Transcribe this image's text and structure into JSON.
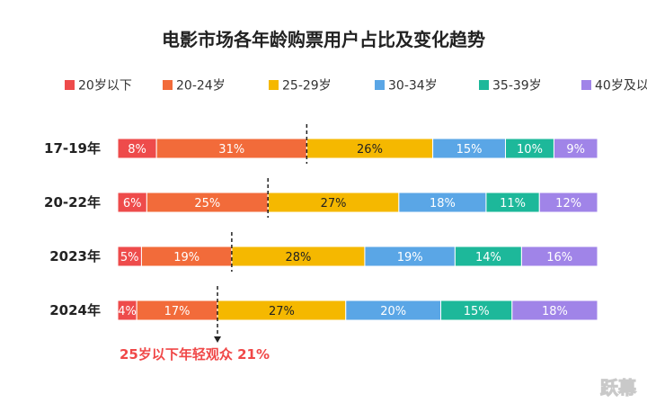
{
  "chart_data": {
    "type": "bar",
    "stacked": true,
    "orientation": "horizontal",
    "title": "电影市场各年龄购票用户占比及变化趋势",
    "categories": [
      "17-19年",
      "20-22年",
      "2023年",
      "2024年"
    ],
    "series": [
      {
        "name": "20岁以下",
        "color": "#ee4b4b",
        "values": [
          8,
          6,
          5,
          4
        ]
      },
      {
        "name": "20-24岁",
        "color": "#f26b3a",
        "values": [
          31,
          25,
          19,
          17
        ]
      },
      {
        "name": "25-29岁",
        "color": "#f5b800",
        "values": [
          26,
          27,
          28,
          27
        ]
      },
      {
        "name": "30-34岁",
        "color": "#5aa6e6",
        "values": [
          15,
          18,
          19,
          20
        ]
      },
      {
        "name": "35-39岁",
        "color": "#1db89a",
        "values": [
          10,
          11,
          14,
          15
        ]
      },
      {
        "name": "40岁及以上",
        "color": "#a084e8",
        "values": [
          9,
          12,
          16,
          18
        ]
      }
    ],
    "value_suffix": "%",
    "legend_position": "top",
    "annotation": "25岁以下年轻观众 21%",
    "annotation_color": "#f04848",
    "divider_after_series": 1
  },
  "watermark": "跃幕"
}
